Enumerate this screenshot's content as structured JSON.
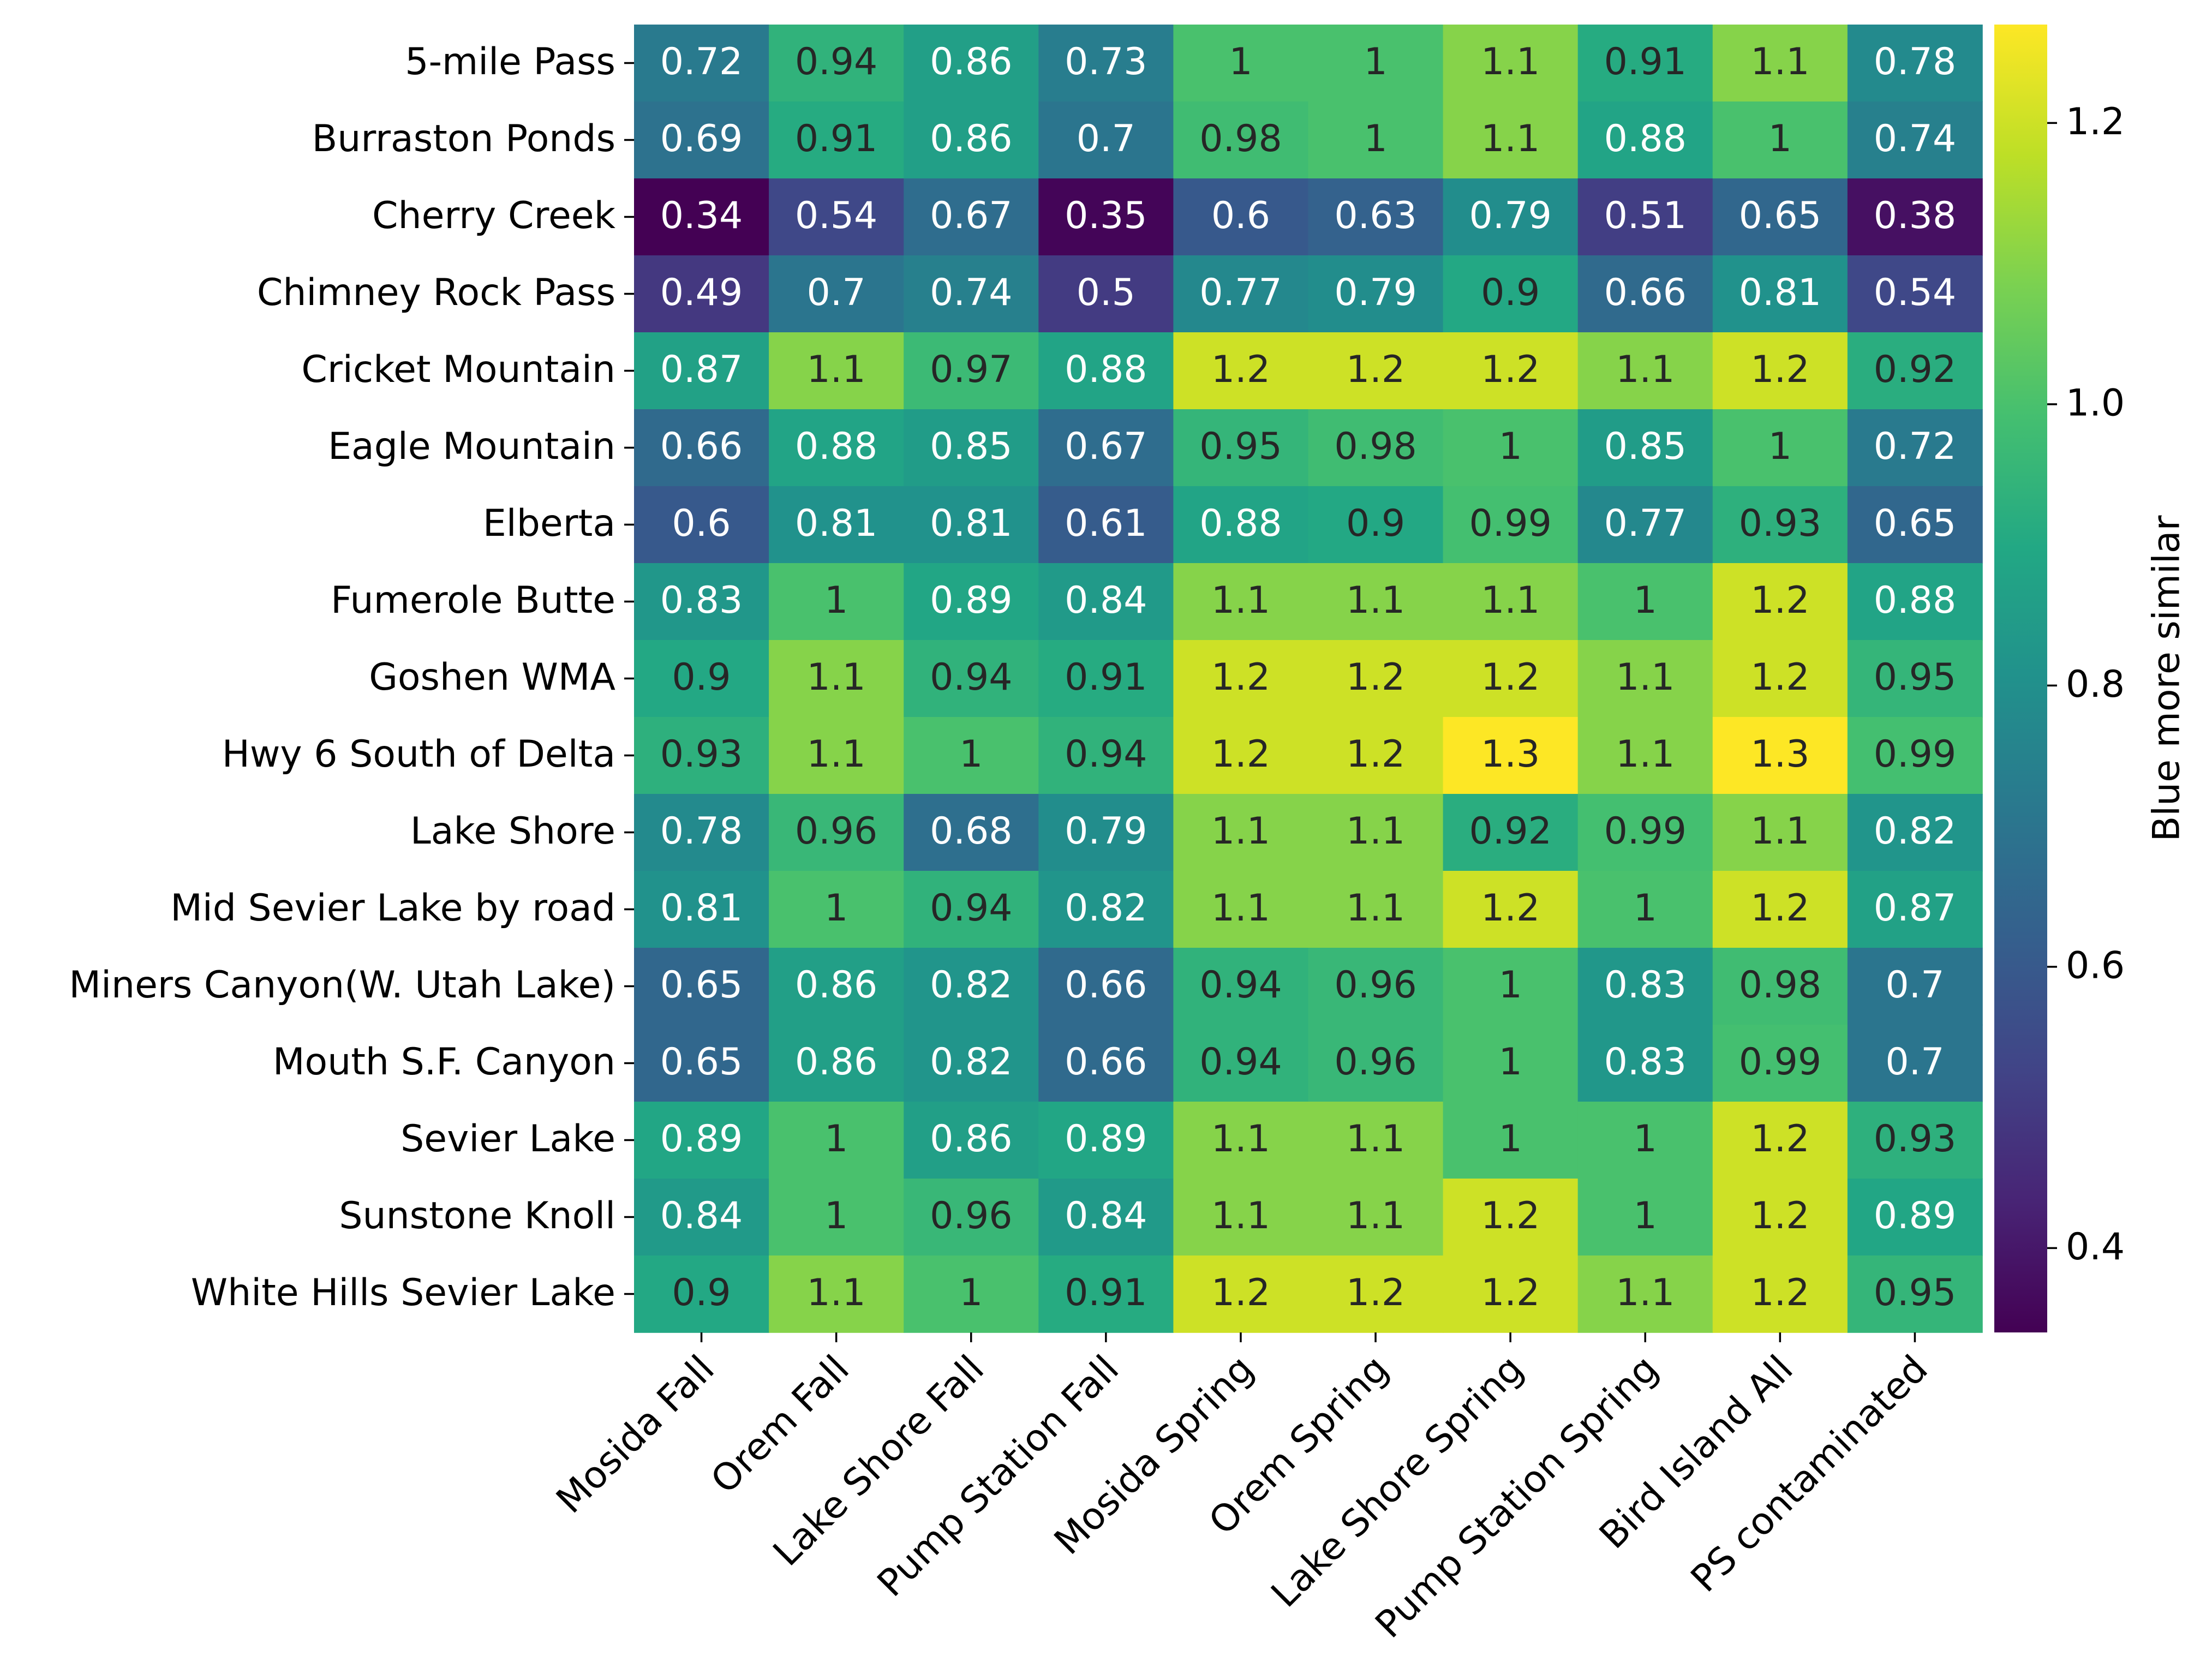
{
  "chart_data": {
    "type": "heatmap",
    "title": "",
    "xlabel": "",
    "ylabel": "",
    "colormap": "viridis",
    "colorbar": {
      "label": "Blue more similar",
      "range": [
        0.34,
        1.27
      ],
      "ticks": [
        0.4,
        0.6,
        0.8,
        1.0,
        1.2
      ],
      "tick_labels": [
        "0.4",
        "0.6",
        "0.8",
        "1.0",
        "1.2"
      ]
    },
    "columns": [
      "Mosida Fall",
      "Orem Fall",
      "Lake Shore Fall",
      "Pump Station Fall",
      "Mosida Spring",
      "Orem Spring",
      "Lake Shore Spring",
      "Pump Station Spring",
      "Bird Island All",
      "PS contaminated"
    ],
    "rows": [
      {
        "label": "5-mile Pass",
        "values": [
          0.72,
          0.94,
          0.86,
          0.73,
          1.0,
          1.0,
          1.1,
          0.91,
          1.1,
          0.78
        ],
        "labels": [
          "0.72",
          "0.94",
          "0.86",
          "0.73",
          "1",
          "1",
          "1.1",
          "0.91",
          "1.1",
          "0.78"
        ]
      },
      {
        "label": "Burraston Ponds",
        "values": [
          0.69,
          0.91,
          0.86,
          0.7,
          0.98,
          1.0,
          1.1,
          0.88,
          1.0,
          0.74
        ],
        "labels": [
          "0.69",
          "0.91",
          "0.86",
          "0.7",
          "0.98",
          "1",
          "1.1",
          "0.88",
          "1",
          "0.74"
        ]
      },
      {
        "label": "Cherry Creek",
        "values": [
          0.34,
          0.54,
          0.67,
          0.35,
          0.6,
          0.63,
          0.79,
          0.51,
          0.65,
          0.38
        ],
        "labels": [
          "0.34",
          "0.54",
          "0.67",
          "0.35",
          "0.6",
          "0.63",
          "0.79",
          "0.51",
          "0.65",
          "0.38"
        ]
      },
      {
        "label": "Chimney Rock Pass",
        "values": [
          0.49,
          0.7,
          0.74,
          0.5,
          0.77,
          0.79,
          0.9,
          0.66,
          0.81,
          0.54
        ],
        "labels": [
          "0.49",
          "0.7",
          "0.74",
          "0.5",
          "0.77",
          "0.79",
          "0.9",
          "0.66",
          "0.81",
          "0.54"
        ]
      },
      {
        "label": "Cricket Mountain",
        "values": [
          0.87,
          1.1,
          0.97,
          0.88,
          1.2,
          1.2,
          1.2,
          1.1,
          1.2,
          0.92
        ],
        "labels": [
          "0.87",
          "1.1",
          "0.97",
          "0.88",
          "1.2",
          "1.2",
          "1.2",
          "1.1",
          "1.2",
          "0.92"
        ]
      },
      {
        "label": "Eagle Mountain",
        "values": [
          0.66,
          0.88,
          0.85,
          0.67,
          0.95,
          0.98,
          1.0,
          0.85,
          1.0,
          0.72
        ],
        "labels": [
          "0.66",
          "0.88",
          "0.85",
          "0.67",
          "0.95",
          "0.98",
          "1",
          "0.85",
          "1",
          "0.72"
        ]
      },
      {
        "label": "Elberta",
        "values": [
          0.6,
          0.81,
          0.81,
          0.61,
          0.88,
          0.9,
          0.99,
          0.77,
          0.93,
          0.65
        ],
        "labels": [
          "0.6",
          "0.81",
          "0.81",
          "0.61",
          "0.88",
          "0.9",
          "0.99",
          "0.77",
          "0.93",
          "0.65"
        ]
      },
      {
        "label": "Fumerole Butte",
        "values": [
          0.83,
          1.0,
          0.89,
          0.84,
          1.1,
          1.1,
          1.1,
          1.0,
          1.2,
          0.88
        ],
        "labels": [
          "0.83",
          "1",
          "0.89",
          "0.84",
          "1.1",
          "1.1",
          "1.1",
          "1",
          "1.2",
          "0.88"
        ]
      },
      {
        "label": "Goshen WMA",
        "values": [
          0.9,
          1.1,
          0.94,
          0.91,
          1.2,
          1.2,
          1.2,
          1.1,
          1.2,
          0.95
        ],
        "labels": [
          "0.9",
          "1.1",
          "0.94",
          "0.91",
          "1.2",
          "1.2",
          "1.2",
          "1.1",
          "1.2",
          "0.95"
        ]
      },
      {
        "label": "Hwy 6 South of Delta",
        "values": [
          0.93,
          1.1,
          1.0,
          0.94,
          1.2,
          1.2,
          1.3,
          1.1,
          1.3,
          0.99
        ],
        "labels": [
          "0.93",
          "1.1",
          "1",
          "0.94",
          "1.2",
          "1.2",
          "1.3",
          "1.1",
          "1.3",
          "0.99"
        ]
      },
      {
        "label": "Lake Shore",
        "values": [
          0.78,
          0.96,
          0.68,
          0.79,
          1.1,
          1.1,
          0.92,
          0.99,
          1.1,
          0.82
        ],
        "labels": [
          "0.78",
          "0.96",
          "0.68",
          "0.79",
          "1.1",
          "1.1",
          "0.92",
          "0.99",
          "1.1",
          "0.82"
        ]
      },
      {
        "label": "Mid Sevier Lake by road",
        "values": [
          0.81,
          1.0,
          0.94,
          0.82,
          1.1,
          1.1,
          1.2,
          1.0,
          1.2,
          0.87
        ],
        "labels": [
          "0.81",
          "1",
          "0.94",
          "0.82",
          "1.1",
          "1.1",
          "1.2",
          "1",
          "1.2",
          "0.87"
        ]
      },
      {
        "label": "Miners Canyon(W. Utah Lake)",
        "values": [
          0.65,
          0.86,
          0.82,
          0.66,
          0.94,
          0.96,
          1.0,
          0.83,
          0.98,
          0.7
        ],
        "labels": [
          "0.65",
          "0.86",
          "0.82",
          "0.66",
          "0.94",
          "0.96",
          "1",
          "0.83",
          "0.98",
          "0.7"
        ]
      },
      {
        "label": "Mouth S.F. Canyon",
        "values": [
          0.65,
          0.86,
          0.82,
          0.66,
          0.94,
          0.96,
          1.0,
          0.83,
          0.99,
          0.7
        ],
        "labels": [
          "0.65",
          "0.86",
          "0.82",
          "0.66",
          "0.94",
          "0.96",
          "1",
          "0.83",
          "0.99",
          "0.7"
        ]
      },
      {
        "label": "Sevier Lake",
        "values": [
          0.89,
          1.0,
          0.86,
          0.89,
          1.1,
          1.1,
          1.0,
          1.0,
          1.2,
          0.93
        ],
        "labels": [
          "0.89",
          "1",
          "0.86",
          "0.89",
          "1.1",
          "1.1",
          "1",
          "1",
          "1.2",
          "0.93"
        ]
      },
      {
        "label": "Sunstone Knoll",
        "values": [
          0.84,
          1.0,
          0.96,
          0.84,
          1.1,
          1.1,
          1.2,
          1.0,
          1.2,
          0.89
        ],
        "labels": [
          "0.84",
          "1",
          "0.96",
          "0.84",
          "1.1",
          "1.1",
          "1.2",
          "1",
          "1.2",
          "0.89"
        ]
      },
      {
        "label": "White Hills Sevier Lake",
        "values": [
          0.9,
          1.1,
          1.0,
          0.91,
          1.2,
          1.2,
          1.2,
          1.1,
          1.2,
          0.95
        ],
        "labels": [
          "0.9",
          "1.1",
          "1",
          "0.91",
          "1.2",
          "1.2",
          "1.2",
          "1.1",
          "1.2",
          "0.95"
        ]
      }
    ]
  }
}
